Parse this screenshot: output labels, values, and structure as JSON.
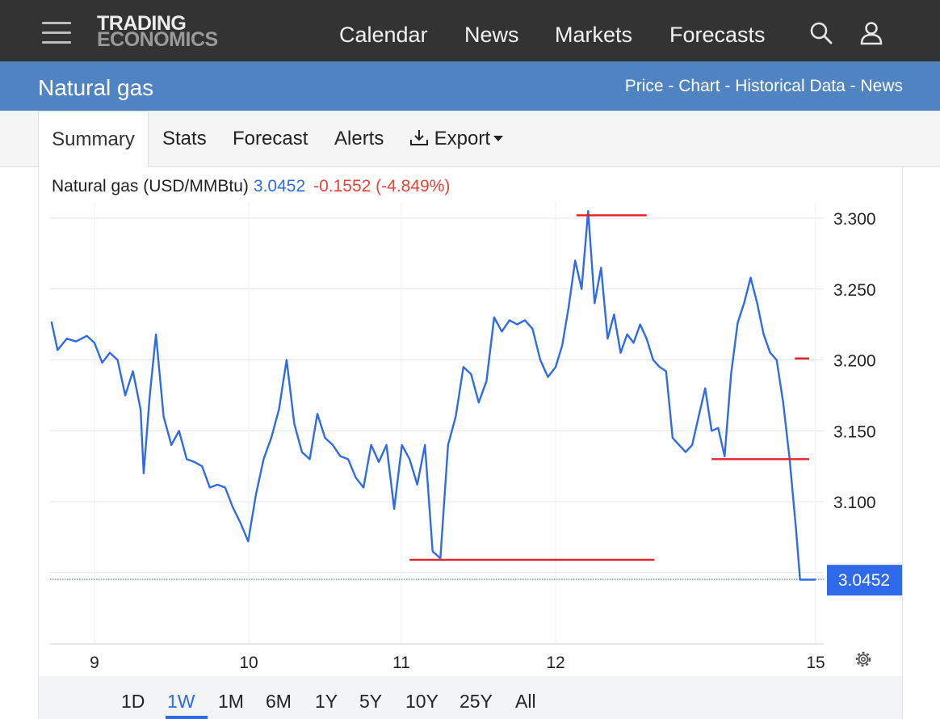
{
  "header": {
    "logo_line1": "TRADING",
    "logo_line2": "ECONOMICS",
    "nav": [
      "Calendar",
      "News",
      "Markets",
      "Forecasts"
    ],
    "icons": [
      "menu-icon",
      "search-icon",
      "user-icon"
    ]
  },
  "titlebar": {
    "title": "Natural gas",
    "links": [
      "Price",
      "Chart",
      "Historical Data",
      "News"
    ],
    "separator": " - "
  },
  "tabs": {
    "summary": "Summary",
    "stats": "Stats",
    "forecast": "Forecast",
    "alerts": "Alerts",
    "export": "Export"
  },
  "legend": {
    "name": "Natural gas (USD/MMBtu)",
    "price": "3.0452",
    "change": "-0.1552 (-4.849%)"
  },
  "ranges": [
    "1D",
    "1W",
    "1M",
    "6M",
    "1Y",
    "5Y",
    "10Y",
    "25Y",
    "All"
  ],
  "active_range": "1W",
  "colors": {
    "line": "#2f6be8",
    "annotation": "#e8202a",
    "header_bg": "#333333",
    "title_bg": "#4f83c2"
  },
  "chart_data": {
    "type": "line",
    "x_ticks": [
      "9",
      "10",
      "11",
      "12",
      "15"
    ],
    "y_ticks": [
      "3.300",
      "3.250",
      "3.200",
      "3.150",
      "3.100"
    ],
    "ylim": [
      3.03,
      3.31
    ],
    "last_value_label": "3.0452",
    "grid": true,
    "series": [
      {
        "x": [
          8.72,
          8.76,
          8.82,
          8.88,
          8.95,
          9.0,
          9.05,
          9.1,
          9.15,
          9.2,
          9.25,
          9.3,
          9.32,
          9.36,
          9.4,
          9.45,
          9.5,
          9.55,
          9.6,
          9.65,
          9.7,
          9.75,
          9.8,
          9.85,
          9.9,
          9.95,
          10.0,
          10.05,
          10.1,
          10.15,
          10.2,
          10.25,
          10.3,
          10.35,
          10.4,
          10.45,
          10.5,
          10.55,
          10.6,
          10.65,
          10.7,
          10.75,
          10.8,
          10.85,
          10.9,
          10.95,
          11.0,
          11.05,
          11.1,
          11.15,
          11.2,
          11.25,
          11.3,
          11.35,
          11.4,
          11.45,
          11.5,
          11.55,
          11.6,
          11.65,
          11.7,
          11.75,
          11.8,
          11.85,
          11.9,
          11.95,
          12.0,
          12.05,
          12.1,
          12.15,
          12.2,
          12.25,
          12.3,
          12.35,
          12.4,
          12.45,
          12.5,
          12.55,
          12.6,
          12.65,
          12.7,
          12.75,
          12.8,
          12.85,
          12.9,
          12.95,
          13.0,
          13.05,
          13.1,
          13.15,
          13.2,
          13.25,
          13.3,
          13.35,
          13.4,
          13.45,
          13.5,
          13.55,
          13.6,
          13.65,
          13.7,
          13.75,
          13.8,
          13.85,
          13.88,
          13.9,
          13.93,
          13.96,
          14.0
        ],
        "values": [
          3.227,
          3.207,
          3.215,
          3.213,
          3.217,
          3.212,
          3.198,
          3.205,
          3.2,
          3.175,
          3.192,
          3.165,
          3.12,
          3.175,
          3.218,
          3.16,
          3.14,
          3.15,
          3.13,
          3.128,
          3.125,
          3.11,
          3.112,
          3.11,
          3.096,
          3.085,
          3.072,
          3.105,
          3.13,
          3.145,
          3.165,
          3.2,
          3.155,
          3.135,
          3.13,
          3.162,
          3.145,
          3.14,
          3.132,
          3.13,
          3.117,
          3.11,
          3.14,
          3.128,
          3.14,
          3.095,
          3.14,
          3.13,
          3.112,
          3.14,
          3.065,
          3.06,
          3.14,
          3.16,
          3.195,
          3.19,
          3.17,
          3.185,
          3.23,
          3.22,
          3.228,
          3.225,
          3.228,
          3.222,
          3.2,
          3.188,
          3.195,
          3.21,
          3.237,
          3.27,
          3.25,
          3.305,
          3.24,
          3.265,
          3.215,
          3.232,
          3.205,
          3.218,
          3.212,
          3.225,
          3.215,
          3.2,
          3.195,
          3.192,
          3.145,
          3.14,
          3.135,
          3.14,
          3.16,
          3.18,
          3.15,
          3.152,
          3.132,
          3.19,
          3.226,
          3.24,
          3.258,
          3.24,
          3.218,
          3.205,
          3.2,
          3.17,
          3.13,
          3.08,
          3.045,
          3.045,
          3.045,
          3.045,
          3.045
        ]
      }
    ],
    "annotations": [
      {
        "type": "hline",
        "y": 3.302,
        "x_from": 12.16,
        "x_to": 12.7
      },
      {
        "type": "hline",
        "y": 3.059,
        "x_from": 11.05,
        "x_to": 12.76
      },
      {
        "type": "hline",
        "y": 3.13,
        "x_from": 13.2,
        "x_to": 13.95
      },
      {
        "type": "hline",
        "y": 3.201,
        "x_from": 13.84,
        "x_to": 13.95
      }
    ]
  }
}
